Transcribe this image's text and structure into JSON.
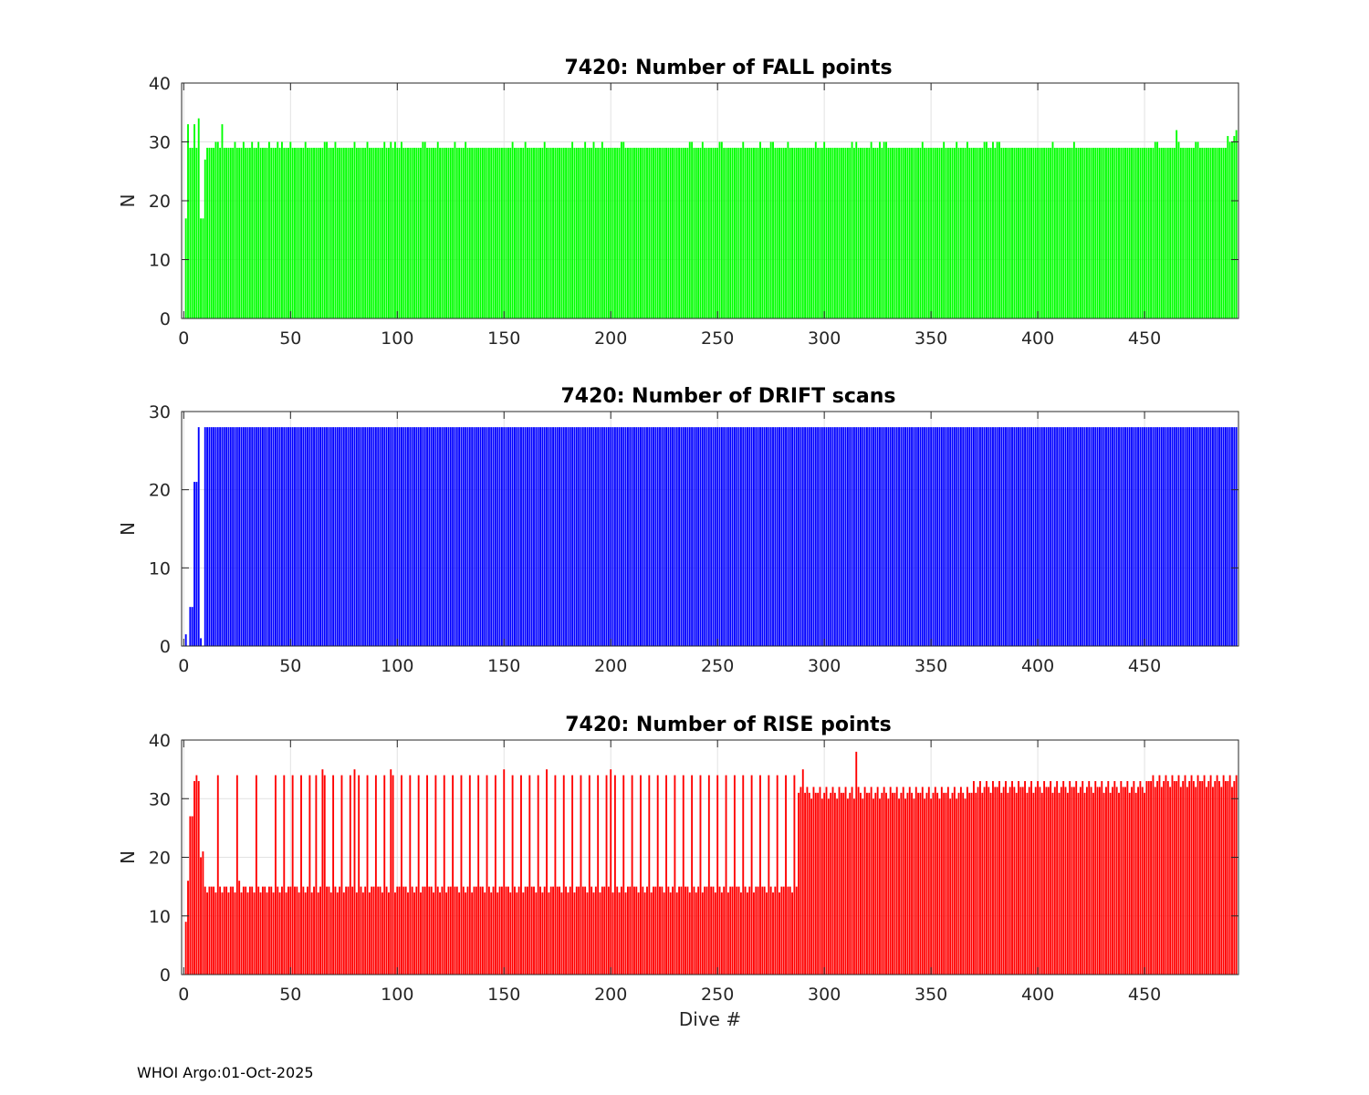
{
  "footer": "WHOI Argo:01-Oct-2025",
  "colors": {
    "fall": "#00ff00",
    "drift": "#0000ff",
    "rise": "#ff0000",
    "grid": "#e2e2e2",
    "axis": "#262626"
  },
  "chart_data": [
    {
      "type": "bar",
      "title": "7420: Number of FALL points",
      "xlabel": "",
      "ylabel": "N",
      "xlim": [
        -1,
        494
      ],
      "ylim": [
        0,
        40
      ],
      "xticks": [
        0,
        50,
        100,
        150,
        200,
        250,
        300,
        350,
        400,
        450
      ],
      "yticks": [
        0,
        10,
        20,
        30,
        40
      ],
      "grid": true,
      "color": "#00ff00",
      "series_rule": "dives 1-493, one bar per dive; values listed below, remaining dives = 29",
      "values": [
        17,
        33,
        29,
        29,
        33,
        29,
        34,
        17,
        17,
        27,
        29,
        29,
        29,
        29,
        30,
        30,
        29,
        33,
        29,
        29,
        29,
        29,
        29,
        30,
        29,
        29,
        29,
        30,
        29,
        29
      ],
      "typical_value": 29,
      "overrides": [
        [
          32,
          30
        ],
        [
          35,
          30
        ],
        [
          40,
          30
        ],
        [
          44,
          30
        ],
        [
          46,
          30
        ],
        [
          50,
          30
        ],
        [
          57,
          30
        ],
        [
          66,
          30
        ],
        [
          67,
          30
        ],
        [
          71,
          30
        ],
        [
          80,
          30
        ],
        [
          86,
          30
        ],
        [
          94,
          30
        ],
        [
          97,
          30
        ],
        [
          99,
          30
        ],
        [
          102,
          30
        ],
        [
          112,
          30
        ],
        [
          113,
          30
        ],
        [
          119,
          30
        ],
        [
          127,
          30
        ],
        [
          132,
          30
        ],
        [
          154,
          30
        ],
        [
          160,
          30
        ],
        [
          169,
          30
        ],
        [
          182,
          30
        ],
        [
          188,
          30
        ],
        [
          192,
          30
        ],
        [
          196,
          30
        ],
        [
          205,
          30
        ],
        [
          206,
          30
        ],
        [
          237,
          30
        ],
        [
          238,
          30
        ],
        [
          243,
          30
        ],
        [
          251,
          30
        ],
        [
          252,
          30
        ],
        [
          262,
          30
        ],
        [
          270,
          30
        ],
        [
          275,
          30
        ],
        [
          276,
          30
        ],
        [
          283,
          30
        ],
        [
          296,
          30
        ],
        [
          300,
          30
        ],
        [
          313,
          30
        ],
        [
          315,
          30
        ],
        [
          322,
          30
        ],
        [
          326,
          30
        ],
        [
          328,
          30
        ],
        [
          329,
          30
        ],
        [
          346,
          30
        ],
        [
          356,
          30
        ],
        [
          362,
          30
        ],
        [
          367,
          30
        ],
        [
          375,
          30
        ],
        [
          376,
          30
        ],
        [
          379,
          30
        ],
        [
          381,
          30
        ],
        [
          382,
          30
        ],
        [
          407,
          30
        ],
        [
          417,
          30
        ],
        [
          455,
          30
        ],
        [
          456,
          30
        ],
        [
          465,
          32
        ],
        [
          466,
          30
        ],
        [
          474,
          30
        ],
        [
          475,
          30
        ],
        [
          489,
          31
        ],
        [
          490,
          30
        ],
        [
          491,
          30
        ],
        [
          492,
          31
        ],
        [
          493,
          32
        ]
      ]
    },
    {
      "type": "bar",
      "title": "7420: Number of DRIFT scans",
      "xlabel": "",
      "ylabel": "N",
      "xlim": [
        -1,
        494
      ],
      "ylim": [
        0,
        30
      ],
      "xticks": [
        0,
        50,
        100,
        150,
        200,
        250,
        300,
        350,
        400,
        450
      ],
      "yticks": [
        0,
        10,
        20,
        30
      ],
      "grid": true,
      "color": "#0000ff",
      "series_rule": "dives 1-493, one bar per dive; values listed below, remaining dives = 28",
      "values": [
        1.5,
        0,
        5,
        5,
        21,
        21,
        28,
        1,
        0,
        28,
        28,
        28
      ],
      "typical_value": 28,
      "overrides": []
    },
    {
      "type": "bar",
      "title": "7420: Number of RISE points",
      "xlabel": "Dive #",
      "ylabel": "N",
      "xlim": [
        -1,
        494
      ],
      "ylim": [
        0,
        40
      ],
      "xticks": [
        0,
        50,
        100,
        150,
        200,
        250,
        300,
        350,
        400,
        450
      ],
      "yticks": [
        0,
        10,
        20,
        30,
        40
      ],
      "grid": true,
      "color": "#ff0000",
      "series_rule": "dives 1-493, one bar per dive; values listed for dives 1-12, then periodic pattern",
      "values": [
        9,
        16,
        27,
        27,
        33,
        34,
        33,
        20,
        21,
        15,
        14,
        15
      ],
      "pattern_low": [
        14,
        15
      ],
      "pattern_spike": 34,
      "spike_dives": [
        16,
        25,
        34,
        43,
        47,
        51,
        55,
        59,
        62,
        66,
        70,
        74,
        78,
        82,
        86,
        90,
        94,
        98,
        102,
        106,
        110,
        114,
        118,
        122,
        126,
        130,
        134,
        138,
        142,
        146,
        150,
        154,
        158,
        162,
        166,
        170,
        174,
        178,
        182,
        186,
        190,
        194,
        198,
        202,
        206,
        210,
        214,
        218,
        222,
        226,
        230,
        234,
        238,
        242,
        246,
        250,
        254,
        258,
        262,
        266,
        270,
        274,
        278,
        282,
        286
      ],
      "high_segment_start": 288,
      "high_segment_range": [
        29,
        35
      ],
      "special": [
        [
          290,
          35
        ],
        [
          315,
          38
        ]
      ]
    }
  ]
}
